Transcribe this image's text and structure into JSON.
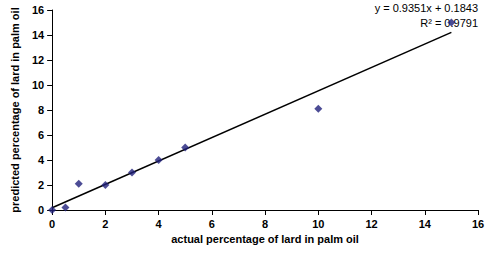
{
  "chart_data": {
    "type": "scatter",
    "xlabel": "actual percentage of lard in palm oil",
    "ylabel": "predicted percentage of lard in palm oil",
    "x": [
      0,
      0.5,
      1,
      2,
      3,
      4,
      5,
      10,
      15
    ],
    "values": [
      0,
      0.2,
      2.1,
      2.0,
      3.0,
      4.0,
      5.0,
      8.1,
      15.0
    ],
    "color": "#1f1f7a",
    "marker": "diamond",
    "trendline": {
      "slope": 0.9351,
      "intercept": 0.1843,
      "x": [
        0,
        15
      ],
      "color": "#000000",
      "line_style": "solid"
    },
    "annotations": [
      "y = 0.9351x + 0.1843",
      "R² = 0.9791"
    ],
    "xlim": [
      0,
      16
    ],
    "xticks": [
      0,
      2,
      4,
      6,
      8,
      10,
      12,
      14,
      16
    ],
    "ylim": [
      0,
      16
    ],
    "yticks": [
      0,
      2,
      4,
      6,
      8,
      10,
      12,
      14,
      16
    ],
    "grid": false
  }
}
